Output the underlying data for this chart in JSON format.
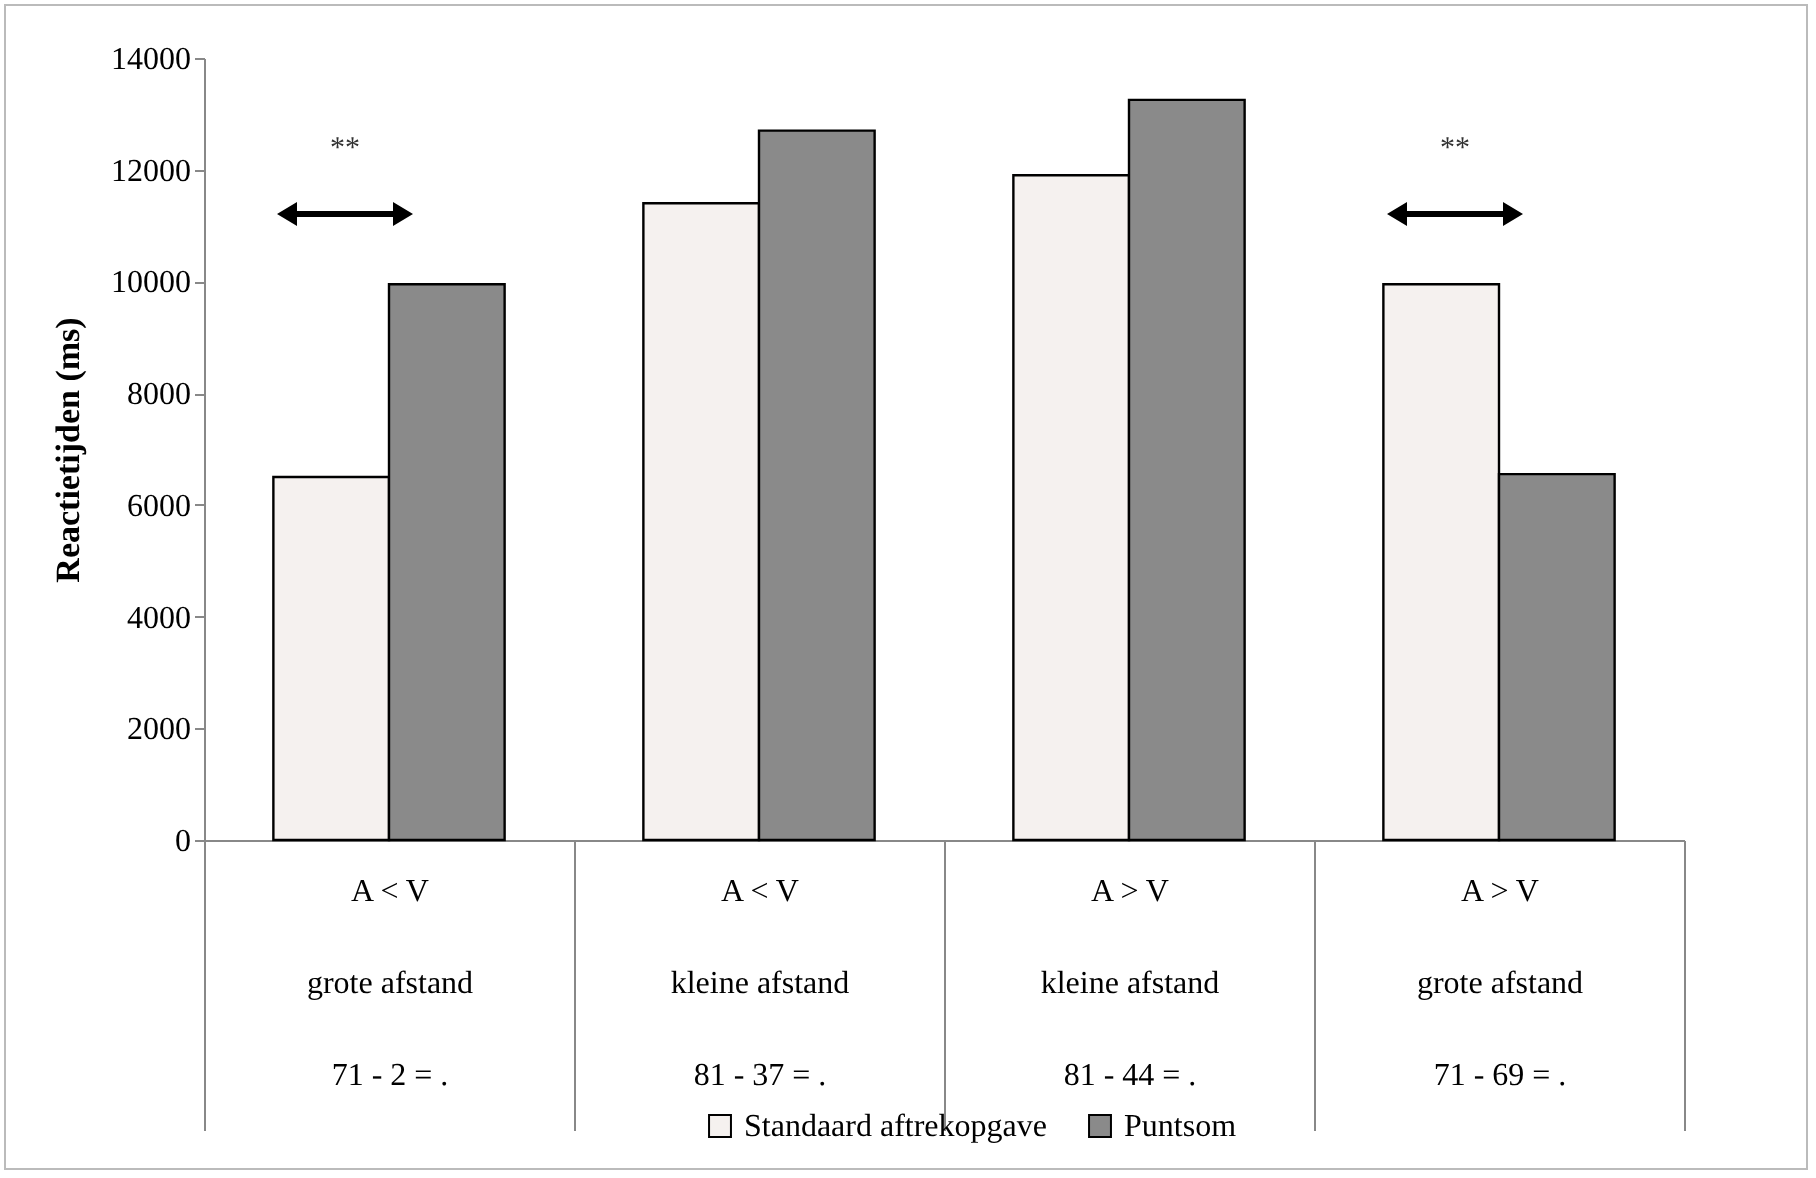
{
  "chart_data": {
    "type": "bar",
    "ylabel": "Reactietijden (ms)",
    "categories": [
      "A < V\ngrote afstand\n71 - 2 = .",
      "A < V\nkleine afstand\n81 - 37 = .",
      "A > V\nkleine afstand\n81 - 44 = .",
      "A > V\ngrote afstand\n71 - 69 = ."
    ],
    "series": [
      {
        "name": "Standaard aftrekopgave",
        "color": "#f5f1ef",
        "values": [
          6500,
          11400,
          11900,
          9950
        ]
      },
      {
        "name": "Puntsom",
        "color": "#8a8a8a",
        "values": [
          9950,
          12700,
          13250,
          6550
        ]
      }
    ],
    "ylim": [
      0,
      14000
    ],
    "yticks": [
      0,
      2000,
      4000,
      6000,
      8000,
      10000,
      12000,
      14000
    ],
    "grid": false,
    "legend": "bottom",
    "annotations": [
      "**",
      "**"
    ]
  }
}
